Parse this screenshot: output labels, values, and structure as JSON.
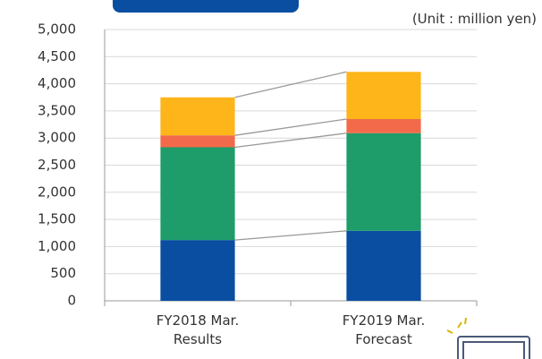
{
  "chart_data": {
    "type": "stacked_bar",
    "unit_label": "(Unit : million yen)",
    "categories": [
      "FY2018 Mar.\nResults",
      "FY2019 Mar.\nForecast"
    ],
    "series": [
      {
        "color": "#0a4ea2",
        "values": [
          1120,
          1290
        ]
      },
      {
        "color": "#1e9c6a",
        "values": [
          1710,
          1800
        ]
      },
      {
        "color": "#f26a4a",
        "values": [
          220,
          260
        ]
      },
      {
        "color": "#fdb51a",
        "values": [
          700,
          870
        ]
      }
    ],
    "ylim": [
      0,
      5000
    ],
    "yticks": [
      0,
      500,
      {
        "value": 1000,
        "label": "1,000"
      },
      {
        "value": 1500,
        "label": "1,500"
      },
      {
        "value": 2000,
        "label": "2,000"
      },
      {
        "value": 2500,
        "label": "2,500"
      },
      {
        "value": 3000,
        "label": "3,000"
      },
      {
        "value": 3500,
        "label": "3,500"
      },
      {
        "value": 4000,
        "label": "4,000"
      },
      {
        "value": 4500,
        "label": "4,500"
      },
      {
        "value": 5000,
        "label": "5,000"
      }
    ],
    "grid": true
  }
}
